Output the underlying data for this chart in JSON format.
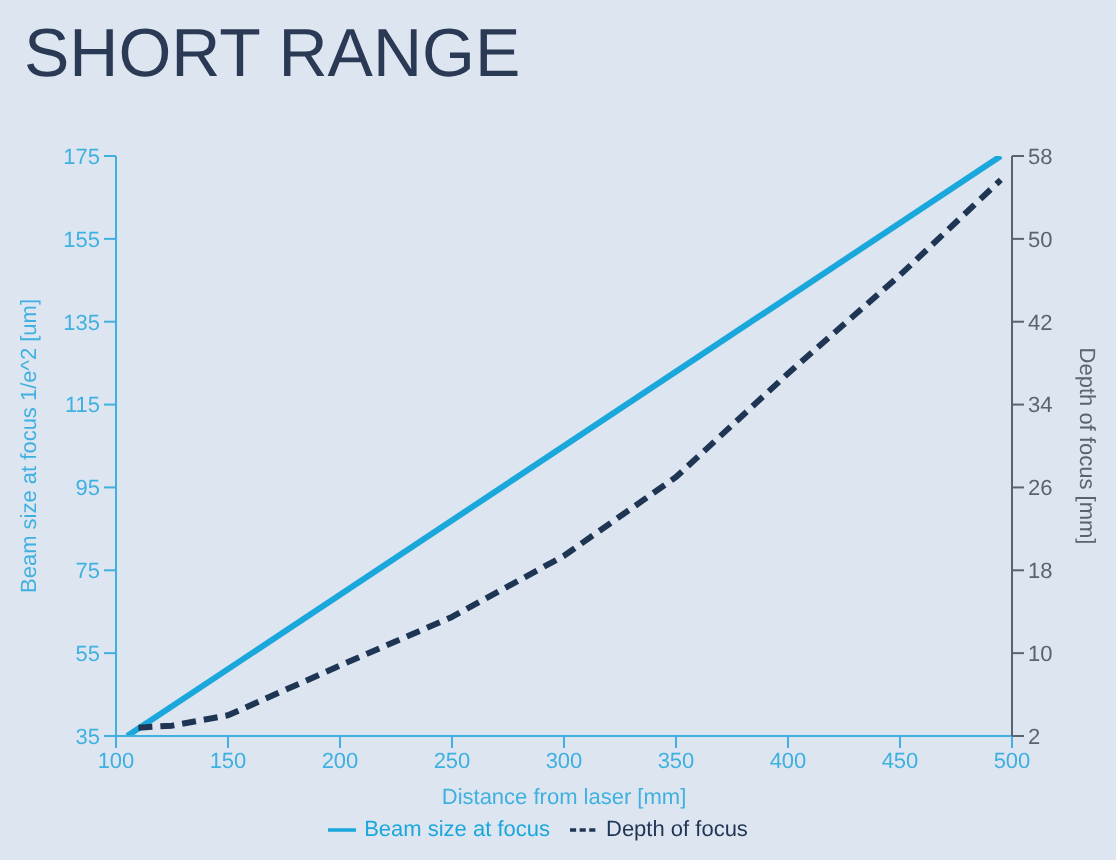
{
  "chart_data": {
    "type": "line",
    "title": "SHORT RANGE",
    "xlabel": "Distance from laser [mm]",
    "ylabel": "Beam size at focus 1/e^2 [um]",
    "y2label": "Depth of focus [mm]",
    "xlim": [
      100,
      500
    ],
    "xticks": [
      100,
      150,
      200,
      250,
      300,
      350,
      400,
      450,
      500
    ],
    "ylim": [
      35,
      175
    ],
    "yticks": [
      35,
      55,
      75,
      95,
      115,
      135,
      155,
      175
    ],
    "y2lim": [
      2,
      58
    ],
    "y2ticks": [
      2,
      10,
      18,
      26,
      34,
      42,
      50,
      58
    ],
    "series": [
      {
        "name": "Beam size at focus",
        "color": "#1aa7dc",
        "line_style": "solid",
        "x": [
          105,
          495
        ],
        "values": [
          35,
          175
        ]
      },
      {
        "name": "Depth of focus",
        "color": "#1f3554",
        "line_style": "dashed",
        "axis": "y2",
        "x": [
          110,
          125,
          150,
          200,
          250,
          300,
          350,
          400,
          450,
          495
        ],
        "values": [
          2.8,
          3,
          4,
          8.8,
          13.5,
          19.4,
          27,
          37,
          46.5,
          55.7
        ]
      }
    ],
    "legend": "bottom",
    "marker": "none"
  }
}
